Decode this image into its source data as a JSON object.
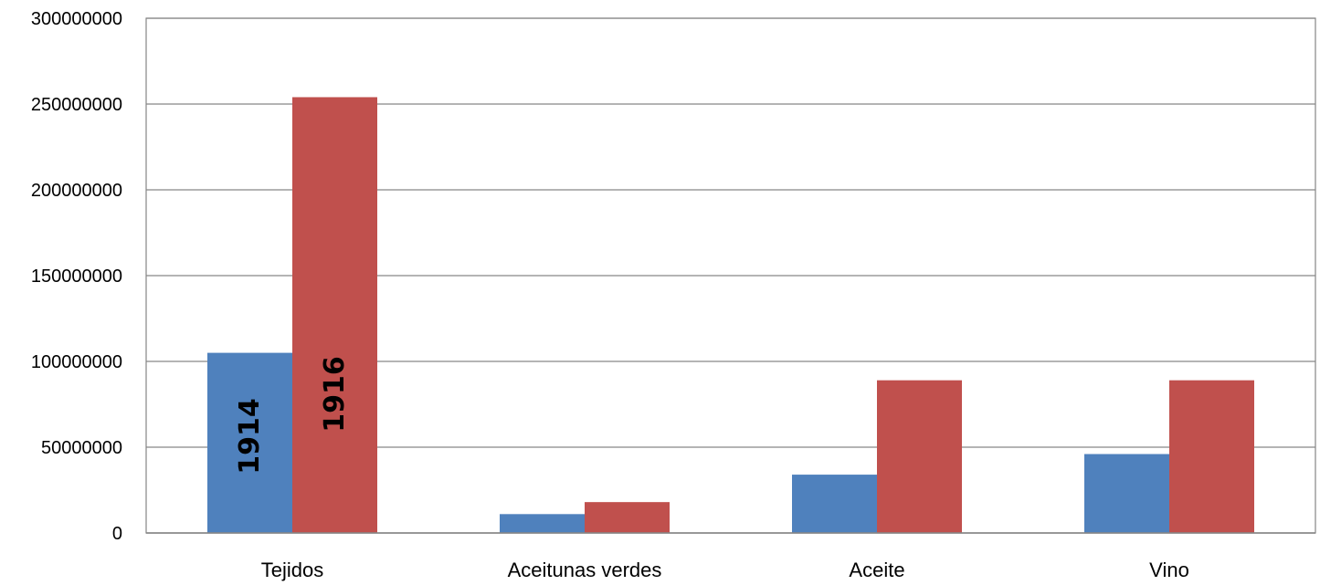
{
  "chart_data": {
    "type": "bar",
    "title": "",
    "xlabel": "",
    "ylabel": "",
    "categories": [
      "Tejidos",
      "Aceitunas verdes",
      "Aceite",
      "Vino"
    ],
    "series": [
      {
        "name": "1914",
        "color": "#4F81BD",
        "values": [
          105000000,
          11000000,
          34000000,
          46000000
        ]
      },
      {
        "name": "1916",
        "color": "#C0504D",
        "values": [
          254000000,
          18000000,
          89000000,
          89000000
        ]
      }
    ],
    "ylim": [
      0,
      300000000
    ],
    "yticks": [
      "0",
      "50000000",
      "100000000",
      "150000000",
      "200000000",
      "250000000",
      "300000000"
    ],
    "grid": true,
    "legend": "none",
    "bar_labels": [
      {
        "text": "1914",
        "series": 0,
        "category": 0
      },
      {
        "text": "1916",
        "series": 1,
        "category": 0
      }
    ]
  }
}
